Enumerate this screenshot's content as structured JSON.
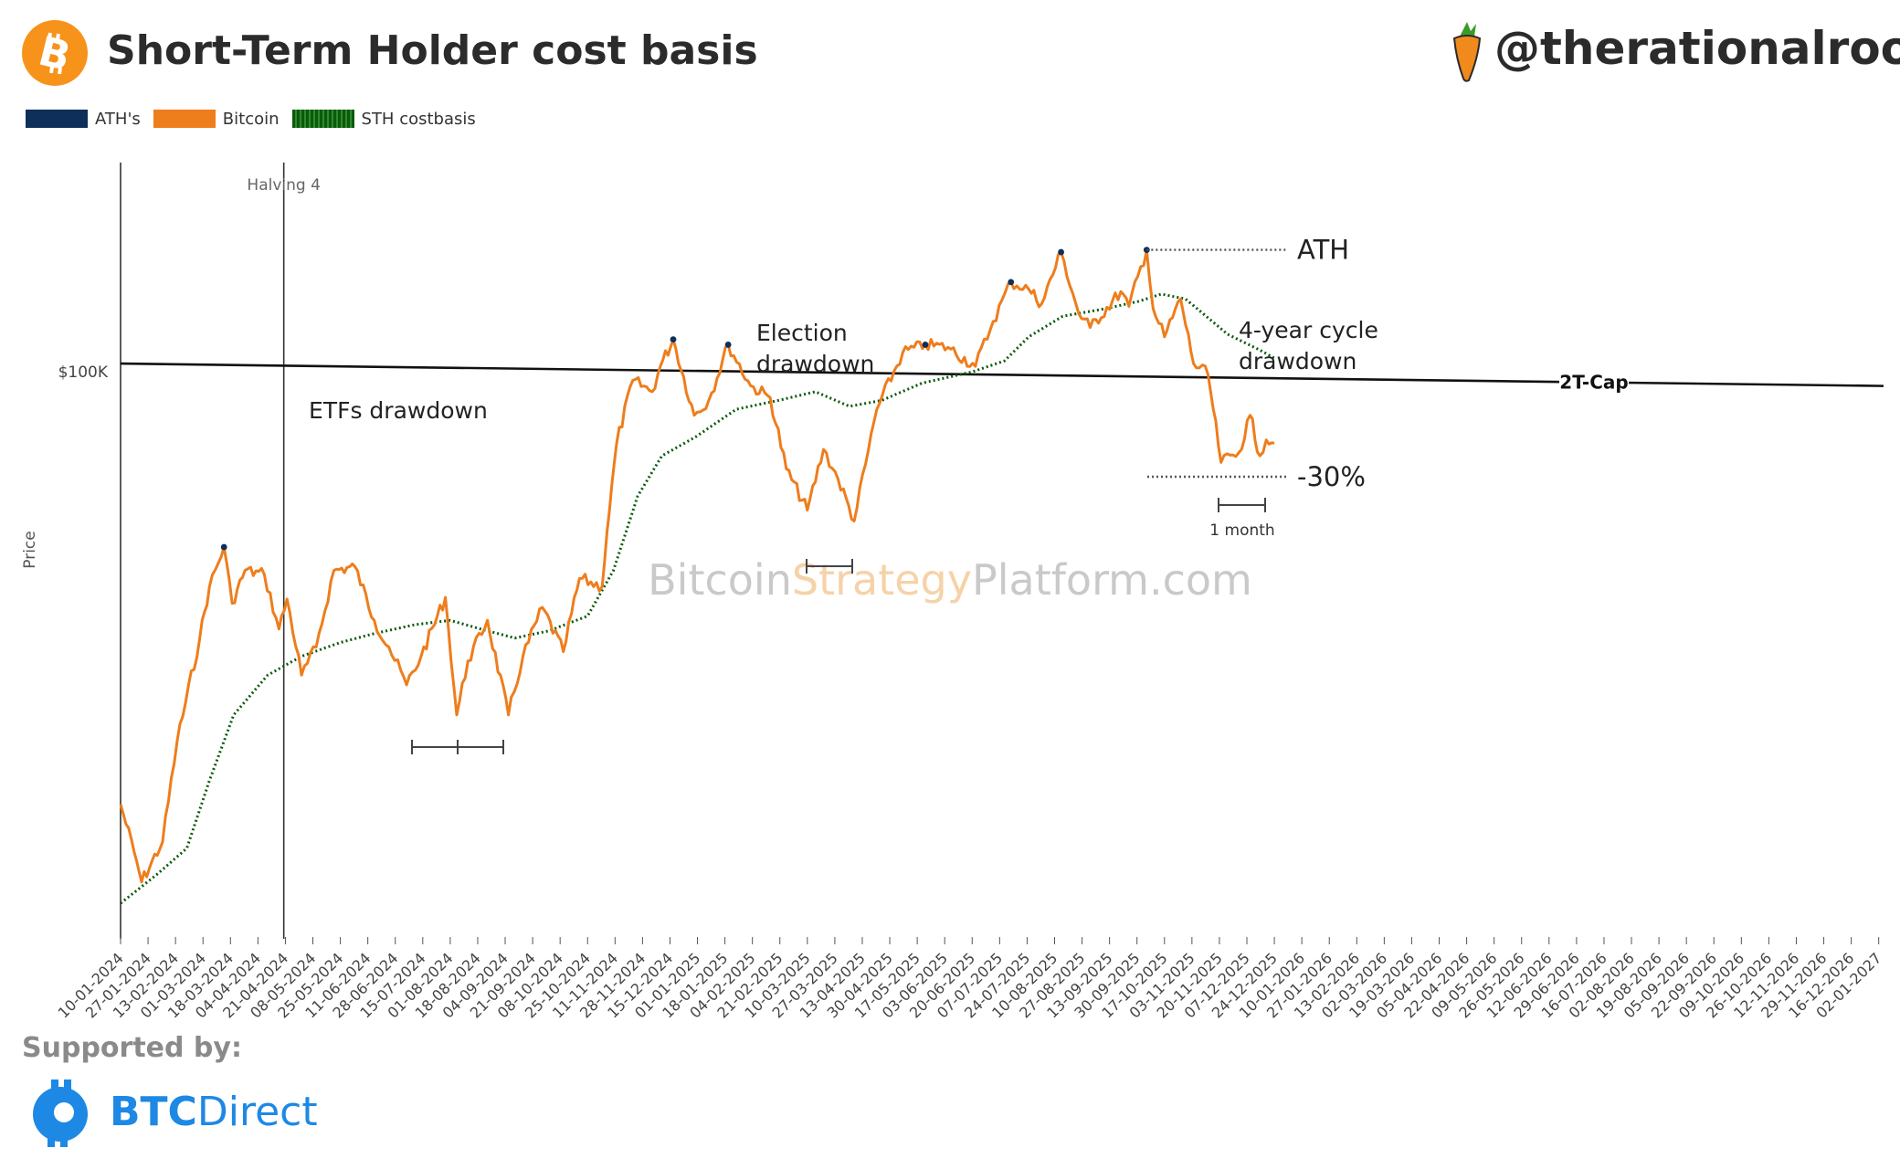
{
  "title": "Short-Term Holder cost basis",
  "handle": "@therationalroot",
  "sponsor": {
    "label": "Supported by:",
    "brand_bold": "BTC",
    "brand_light": "Direct"
  },
  "watermark": {
    "part1": "Bitcoin",
    "part2": "Strategy",
    "part3": "Platform.com"
  },
  "colors": {
    "bitcoin": "#ee7d1c",
    "sth": "#0b5a0b",
    "ath": "#0d2f5a",
    "logo": "#f7931a",
    "sponsor": "#1e88e5"
  },
  "chart_data": {
    "type": "line",
    "ylabel": "Price",
    "y_scale": "log",
    "y_ticks": [
      {
        "value": 100000,
        "label": "$100K"
      }
    ],
    "x_ticks": [
      "10-01-2024",
      "27-01-2024",
      "13-02-2024",
      "01-03-2024",
      "18-03-2024",
      "04-04-2024",
      "21-04-2024",
      "08-05-2024",
      "25-05-2024",
      "11-06-2024",
      "28-06-2024",
      "15-07-2024",
      "01-08-2024",
      "18-08-2024",
      "04-09-2024",
      "21-09-2024",
      "08-10-2024",
      "25-10-2024",
      "11-11-2024",
      "28-11-2024",
      "15-12-2024",
      "01-01-2025",
      "18-01-2025",
      "04-02-2025",
      "21-02-2025",
      "10-03-2025",
      "27-03-2025",
      "13-04-2025",
      "30-04-2025",
      "17-05-2025",
      "03-06-2025",
      "20-06-2025",
      "07-07-2025",
      "24-07-2025",
      "10-08-2025",
      "27-08-2025",
      "13-09-2025",
      "30-09-2025",
      "17-10-2025",
      "03-11-2025",
      "20-11-2025",
      "07-12-2025",
      "24-12-2025",
      "10-01-2026",
      "27-01-2026",
      "13-02-2026",
      "02-03-2026",
      "19-03-2026",
      "05-04-2026",
      "22-04-2026",
      "09-05-2026",
      "26-05-2026",
      "12-06-2026",
      "29-06-2026",
      "16-07-2026",
      "02-08-2026",
      "19-08-2026",
      "05-09-2026",
      "22-09-2026",
      "09-10-2026",
      "26-10-2026",
      "12-11-2026",
      "29-11-2026",
      "16-12-2026",
      "02-01-2027"
    ],
    "legend": [
      "ATH's",
      "Bitcoin",
      "STH costbasis"
    ],
    "legend_position": "top-left",
    "grid": false,
    "series": [
      {
        "name": "Bitcoin",
        "x": [
          "2024-01-10",
          "2024-01-20",
          "2024-01-23",
          "2024-02-05",
          "2024-02-14",
          "2024-02-28",
          "2024-03-05",
          "2024-03-14",
          "2024-03-19",
          "2024-03-27",
          "2024-04-08",
          "2024-04-17",
          "2024-04-22",
          "2024-05-01",
          "2024-05-10",
          "2024-05-21",
          "2024-06-03",
          "2024-06-15",
          "2024-06-24",
          "2024-07-05",
          "2024-07-14",
          "2024-07-29",
          "2024-08-05",
          "2024-08-12",
          "2024-08-24",
          "2024-09-06",
          "2024-09-15",
          "2024-09-27",
          "2024-10-10",
          "2024-10-20",
          "2024-11-03",
          "2024-11-06",
          "2024-11-12",
          "2024-11-22",
          "2024-12-04",
          "2024-12-09",
          "2024-12-17",
          "2024-12-30",
          "2025-01-08",
          "2025-01-20",
          "2025-02-03",
          "2025-02-15",
          "2025-02-25",
          "2025-03-10",
          "2025-03-20",
          "2025-03-29",
          "2025-04-08",
          "2025-04-15",
          "2025-04-22",
          "2025-05-08",
          "2025-05-22",
          "2025-06-05",
          "2025-06-22",
          "2025-07-03",
          "2025-07-14",
          "2025-07-25",
          "2025-08-02",
          "2025-08-14",
          "2025-08-25",
          "2025-09-01",
          "2025-09-20",
          "2025-09-25",
          "2025-10-06",
          "2025-10-10",
          "2025-10-17",
          "2025-10-27",
          "2025-11-04",
          "2025-11-13",
          "2025-11-21",
          "2025-12-02",
          "2025-12-09",
          "2025-12-15",
          "2025-12-19",
          "2025-12-24"
        ],
        "y": [
          46000,
          41500,
          40000,
          43000,
          51500,
          62000,
          68000,
          73000,
          66000,
          70000,
          69500,
          63000,
          66500,
          58000,
          61000,
          70000,
          70500,
          64000,
          61000,
          57000,
          60000,
          66700,
          54000,
          59500,
          64000,
          54000,
          60000,
          65500,
          60500,
          69000,
          68000,
          75000,
          88000,
          98500,
          96500,
          101000,
          106000,
          92500,
          95000,
          105000,
          97500,
          95500,
          84000,
          78000,
          87000,
          82500,
          76500,
          84700,
          93500,
          103500,
          105000,
          104500,
          101000,
          109500,
          117500,
          116000,
          113000,
          124000,
          111000,
          108300,
          115500,
          112500,
          124500,
          112000,
          106500,
          114000,
          101500,
          99500,
          85000,
          86500,
          92500,
          86000,
          88500,
          88000
        ]
      },
      {
        "name": "STH costbasis",
        "x": [
          "2024-01-10",
          "2024-02-01",
          "2024-02-20",
          "2024-03-05",
          "2024-03-20",
          "2024-04-10",
          "2024-05-01",
          "2024-05-25",
          "2024-06-15",
          "2024-07-10",
          "2024-08-01",
          "2024-08-20",
          "2024-09-10",
          "2024-10-01",
          "2024-10-25",
          "2024-11-10",
          "2024-11-25",
          "2024-12-10",
          "2024-12-31",
          "2025-01-25",
          "2025-02-20",
          "2025-03-15",
          "2025-04-05",
          "2025-04-25",
          "2025-05-20",
          "2025-06-20",
          "2025-07-10",
          "2025-07-25",
          "2025-08-15",
          "2025-09-10",
          "2025-10-01",
          "2025-10-15",
          "2025-10-30",
          "2025-11-10",
          "2025-11-25",
          "2025-12-15",
          "2025-12-24"
        ],
        "y": [
          38500,
          40500,
          42500,
          48000,
          54000,
          58000,
          60000,
          61500,
          62500,
          63500,
          64000,
          63000,
          62000,
          62800,
          64500,
          70000,
          80000,
          86000,
          89000,
          93500,
          95000,
          96500,
          94000,
          95000,
          98000,
          100000,
          102000,
          106500,
          110500,
          112000,
          113500,
          115000,
          114000,
          111000,
          107000,
          104000,
          102500
        ]
      },
      {
        "name": "2T-Cap",
        "x": [
          "2024-01-10",
          "2027-01-05"
        ],
        "y": [
          101500,
          97500
        ]
      }
    ],
    "ath_points": {
      "x": [
        "2024-03-14",
        "2024-12-17",
        "2025-01-20",
        "2025-05-22",
        "2025-07-14",
        "2025-08-14",
        "2025-10-06"
      ],
      "y": [
        73000,
        106000,
        105000,
        105000,
        117500,
        124000,
        124500
      ]
    },
    "vertical_lines": [
      {
        "x": "2024-01-10",
        "label": ""
      },
      {
        "x": "2024-04-20",
        "label": "Halving 4"
      }
    ],
    "annotations": [
      {
        "text": "ETFs drawdown"
      },
      {
        "text": "Election"
      },
      {
        "text": "drawdown"
      },
      {
        "text": "ATH"
      },
      {
        "text": "4-year cycle"
      },
      {
        "text": "drawdown"
      },
      {
        "text": "-30%"
      },
      {
        "text": "1 month"
      },
      {
        "text": "2T-Cap"
      }
    ],
    "ylim": [
      36000,
      150000
    ],
    "xlim": [
      "2024-01-10",
      "2027-01-05"
    ]
  }
}
